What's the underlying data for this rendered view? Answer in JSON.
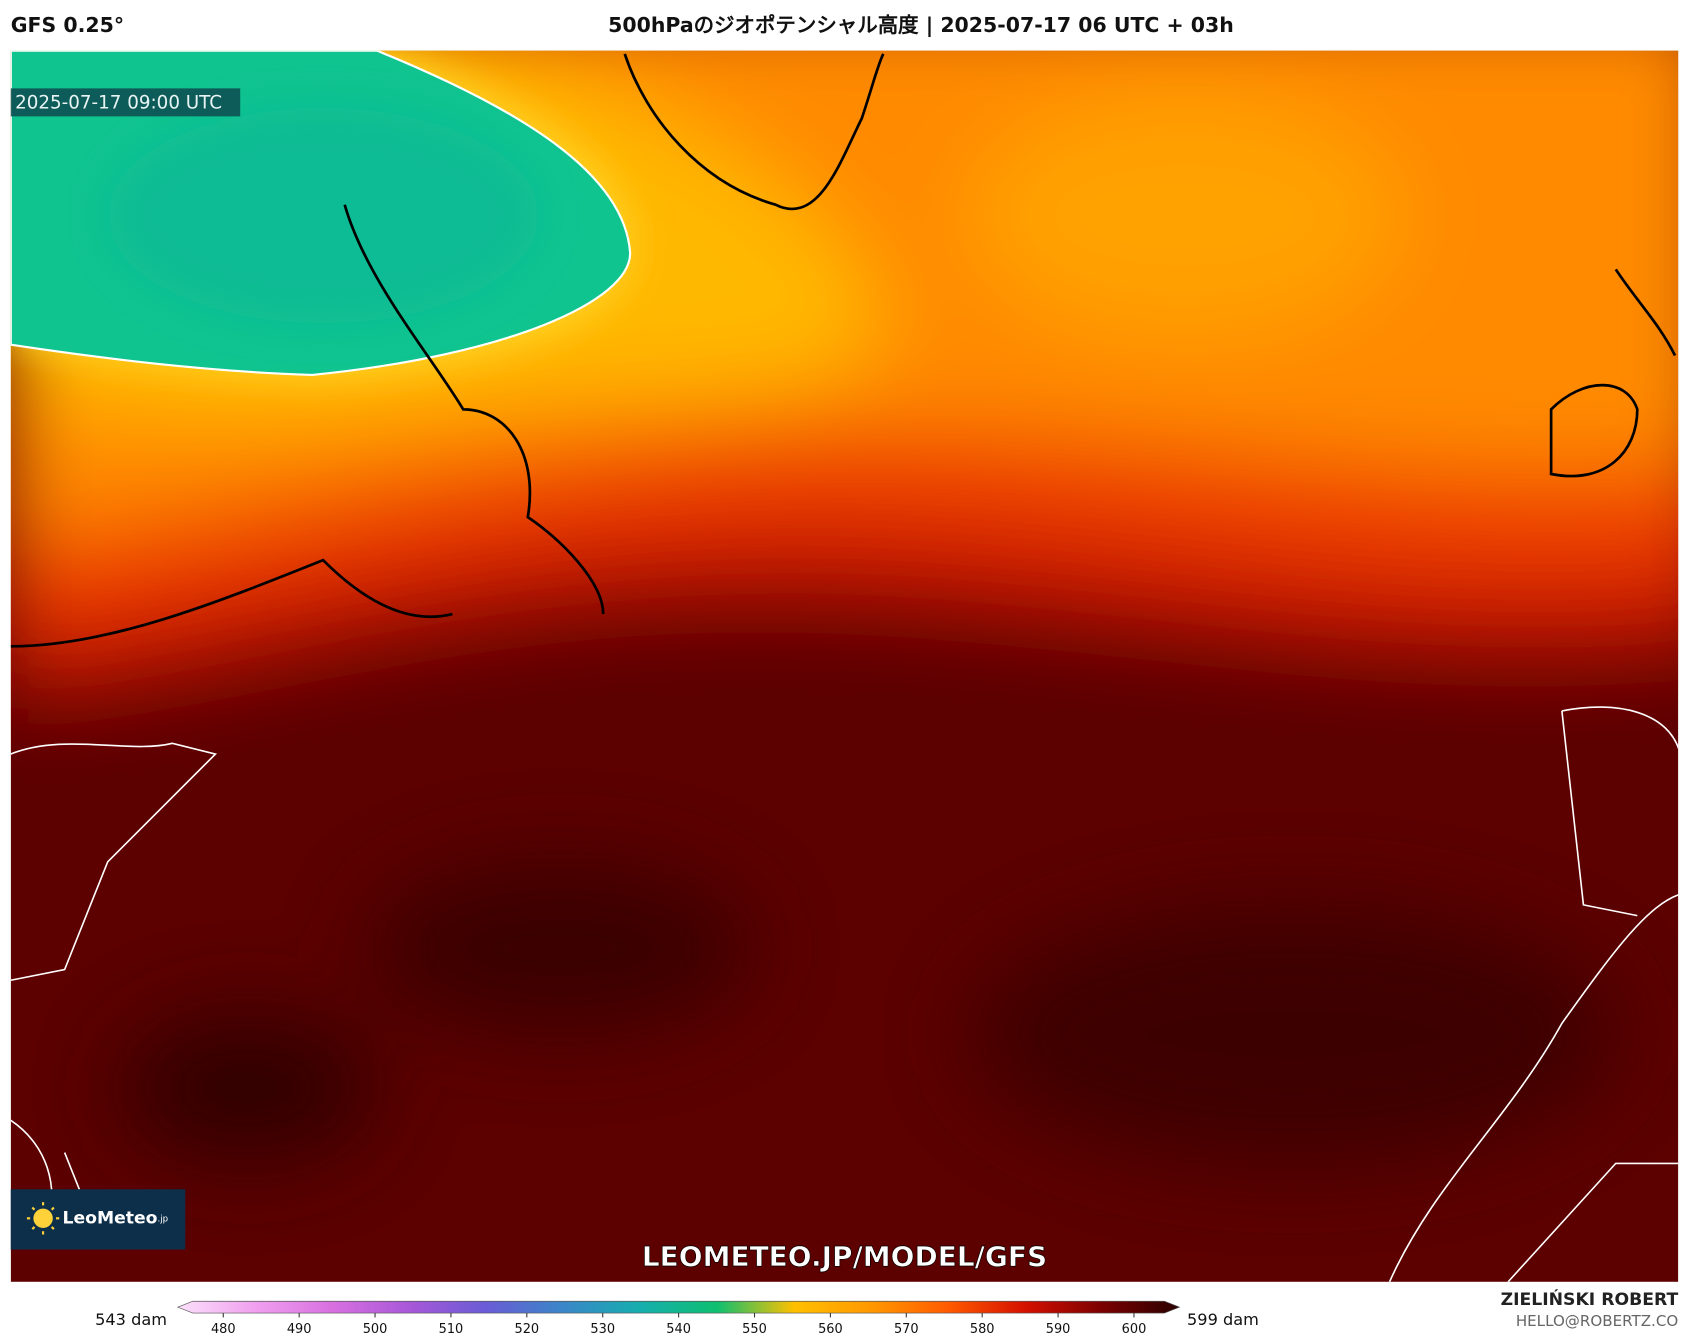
{
  "header": {
    "model": "GFS 0.25°",
    "title": "500hPaのジオポテンシャル高度 | 2025-07-17 06 UTC + 03h"
  },
  "map": {
    "valid_time": "2025-07-17 09:00 UTC",
    "logo": {
      "name": "LeoMeteo",
      "suffix": ".jp"
    },
    "watermark": "LEOMETEO.JP/MODEL/GFS"
  },
  "colorbar": {
    "min_label": "543 dam",
    "max_label": "599 dam",
    "lim": [
      474,
      606
    ],
    "ticks": [
      480,
      490,
      500,
      510,
      520,
      530,
      540,
      550,
      560,
      570,
      580,
      590,
      600
    ],
    "colors": [
      "#fbe0fb",
      "#f0a0ef",
      "#d870e0",
      "#a858d8",
      "#6a5cd6",
      "#3a86c8",
      "#16aeae",
      "#0fbf70",
      "#ffc000",
      "#ff9800",
      "#ff5a00",
      "#d41000",
      "#7a0000",
      "#2a0000"
    ]
  },
  "credit": {
    "name": "ZIELIŃSKI ROBERT",
    "email": "HELLO@ROBERTZ.CO"
  }
}
